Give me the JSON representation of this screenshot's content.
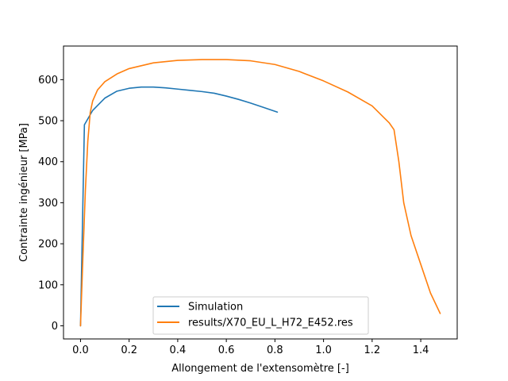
{
  "chart_data": {
    "type": "line",
    "xlabel": "Allongement de l'extensomètre [-]",
    "ylabel": "Contrainte ingénieur [MPa]",
    "xlim": [
      -0.07,
      1.55
    ],
    "ylim": [
      -32,
      682
    ],
    "xticks": [
      0.0,
      0.2,
      0.4,
      0.6,
      0.8,
      1.0,
      1.2,
      1.4
    ],
    "xtick_labels": [
      "0.0",
      "0.2",
      "0.4",
      "0.6",
      "0.8",
      "1.0",
      "1.2",
      "1.4"
    ],
    "yticks": [
      0,
      100,
      200,
      300,
      400,
      500,
      600
    ],
    "ytick_labels": [
      "0",
      "100",
      "200",
      "300",
      "400",
      "500",
      "600"
    ],
    "grid": false,
    "legend_position": "bottom-center",
    "series": [
      {
        "name": "Simulation",
        "color": "#1f77b4",
        "x": [
          0.0,
          0.016,
          0.05,
          0.1,
          0.15,
          0.2,
          0.25,
          0.3,
          0.35,
          0.4,
          0.45,
          0.5,
          0.55,
          0.6,
          0.65,
          0.7,
          0.75,
          0.81
        ],
        "y": [
          0,
          490,
          525,
          555,
          572,
          579,
          582,
          582,
          580,
          577,
          574,
          571,
          567,
          560,
          552,
          543,
          533,
          521
        ]
      },
      {
        "name": "results/X70_EU_L_H72_E452.res",
        "color": "#ff7f0e",
        "x": [
          0.0,
          0.01,
          0.02,
          0.03,
          0.04,
          0.05,
          0.07,
          0.1,
          0.15,
          0.2,
          0.3,
          0.4,
          0.5,
          0.6,
          0.7,
          0.8,
          0.9,
          1.0,
          1.1,
          1.2,
          1.27,
          1.29,
          1.31,
          1.33,
          1.36,
          1.4,
          1.44,
          1.48
        ],
        "y": [
          0,
          170,
          330,
          450,
          520,
          548,
          575,
          595,
          614,
          627,
          641,
          647,
          649,
          649,
          646,
          637,
          620,
          597,
          570,
          536,
          495,
          478,
          400,
          300,
          220,
          150,
          80,
          30
        ]
      }
    ]
  }
}
